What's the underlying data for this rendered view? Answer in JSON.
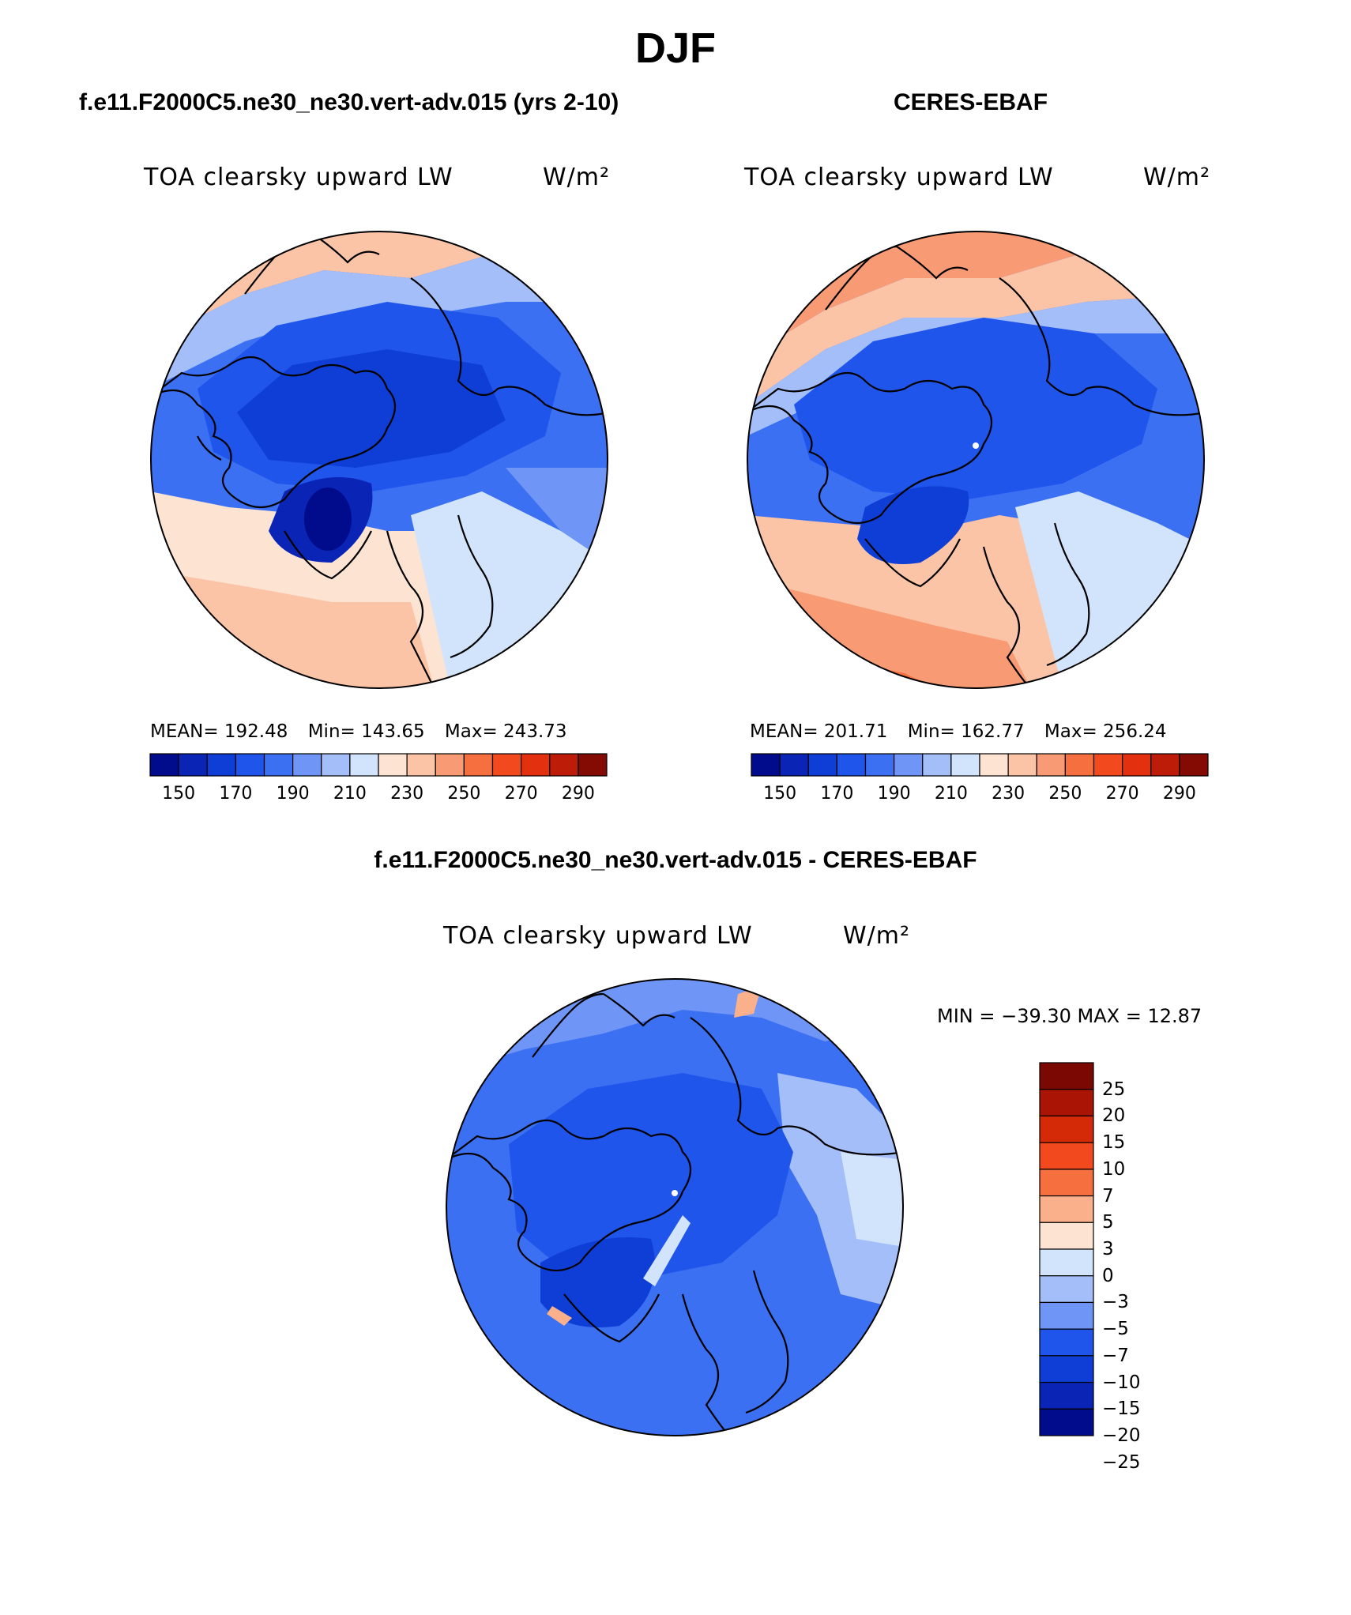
{
  "title": "DJF",
  "colors": {
    "scale": [
      "#000c8b",
      "#0a24b5",
      "#0f3ed6",
      "#1f55eb",
      "#3c70f2",
      "#6f95f6",
      "#a3bef8",
      "#d2e4fb",
      "#fde3d2",
      "#fbc4a6",
      "#f89b74",
      "#f6703f",
      "#f24a1e",
      "#e3300e",
      "#bd1d08",
      "#840b04"
    ],
    "diff": [
      "#000c8b",
      "#0a24b5",
      "#0f3ed6",
      "#1f55eb",
      "#6f95f6",
      "#a3bef8",
      "#d2e4fb",
      "#fde3d2",
      "#fbb08c",
      "#f6703f",
      "#f24a1e",
      "#d52a08",
      "#a91404",
      "#7c0803"
    ],
    "land_line": "#000000"
  },
  "panels": {
    "model": {
      "title": "f.e11.F2000C5.ne30_ne30.vert-adv.015 (yrs 2-10)",
      "variable": "TOA clearsky upward LW",
      "units": "W/m²",
      "mean_label": "MEAN=",
      "mean": "192.48",
      "min_label": "Min=",
      "min": "143.65",
      "max_label": "Max=",
      "max": "243.73",
      "colorbar_ticks": [
        "150",
        "170",
        "190",
        "210",
        "230",
        "250",
        "270",
        "290"
      ]
    },
    "obs": {
      "title": "CERES-EBAF",
      "variable": "TOA clearsky upward LW",
      "units": "W/m²",
      "mean_label": "MEAN=",
      "mean": "201.71",
      "min_label": "Min=",
      "min": "162.77",
      "max_label": "Max=",
      "max": "256.24",
      "colorbar_ticks": [
        "150",
        "170",
        "190",
        "210",
        "230",
        "250",
        "270",
        "290"
      ]
    },
    "diff": {
      "title": "f.e11.F2000C5.ne30_ne30.vert-adv.015 - CERES-EBAF",
      "variable": "TOA clearsky upward LW",
      "units": "W/m²",
      "minmax": "MIN = −39.30 MAX =  12.87",
      "colorbar_ticks": [
        "25",
        "20",
        "15",
        "10",
        "7",
        "5",
        "3",
        "0",
        "−3",
        "−5",
        "−7",
        "−10",
        "−15",
        "−20",
        "−25"
      ]
    }
  }
}
